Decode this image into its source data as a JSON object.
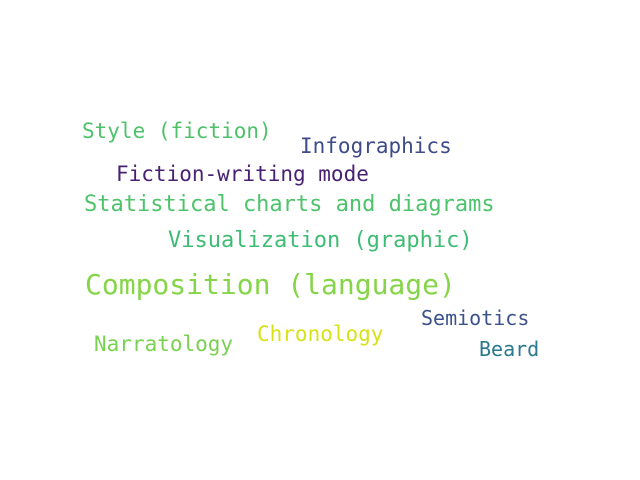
{
  "words": [
    {
      "text": "Style (fiction)",
      "color": "#4fc16b"
    },
    {
      "text": "Infographics",
      "color": "#3e4a89"
    },
    {
      "text": "Fiction-writing mode",
      "color": "#482173"
    },
    {
      "text": "Statistical charts and diagrams",
      "color": "#4ec36b"
    },
    {
      "text": "Visualization (graphic)",
      "color": "#3fbc73"
    },
    {
      "text": "Composition (language)",
      "color": "#86d549"
    },
    {
      "text": "Semiotics",
      "color": "#3b528b"
    },
    {
      "text": "Chronology",
      "color": "#d8e219"
    },
    {
      "text": "Narratology",
      "color": "#7ad151"
    },
    {
      "text": "Beard",
      "color": "#2a788e"
    }
  ]
}
